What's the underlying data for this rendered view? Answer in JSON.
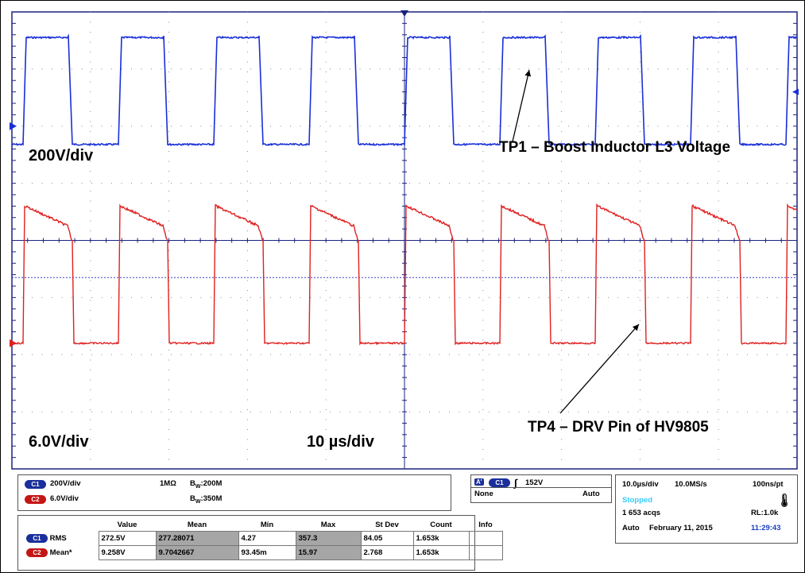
{
  "annotations": {
    "ch1_scale": "200V/div",
    "ch1_label": "TP1 – Boost Inductor L3 Voltage",
    "ch2_scale": "6.0V/div",
    "ch2_label": "TP4 – DRV Pin of HV9805",
    "time_scale": "10 µs/div"
  },
  "colors": {
    "ch1": "#1a2fd8",
    "ch2": "#e02020",
    "grid": "#888888",
    "axis": "#1a237e"
  },
  "channels": {
    "c1": {
      "badge": "C1",
      "scale": "200V/div",
      "impedance": "1MΩ",
      "bw_label": "B",
      "bw_sub": "W",
      "bw": ":200M"
    },
    "c2": {
      "badge": "C2",
      "scale": "6.0V/div",
      "bw_label": "B",
      "bw_sub": "W",
      "bw": ":350M"
    }
  },
  "trigger": {
    "a_badge": "A'",
    "source_badge": "C1",
    "level": "152V",
    "coupling": "None",
    "mode": "Auto"
  },
  "acquisition": {
    "timebase": "10.0µs/div",
    "sample_rate": "10.0MS/s",
    "resolution": "100ns/pt",
    "state": "Stopped",
    "acqs": "1 653 acqs",
    "record_length": "RL:1.0k",
    "mode": "Auto",
    "date": "February 11, 2015",
    "time": "11:29:43"
  },
  "measurements": {
    "headers": [
      "Value",
      "Mean",
      "Min",
      "Max",
      "St Dev",
      "Count",
      "Info"
    ],
    "rows": [
      {
        "badge": "C1",
        "name": "RMS",
        "cells": [
          "272.5V",
          "277.28071",
          "4.27",
          "357.3",
          "84.05",
          "1.653k",
          ""
        ]
      },
      {
        "badge": "C2",
        "name": "Mean*",
        "cells": [
          "9.258V",
          "9.7042667",
          "93.45m",
          "15.97",
          "2.768",
          "1.653k",
          ""
        ]
      }
    ]
  }
}
